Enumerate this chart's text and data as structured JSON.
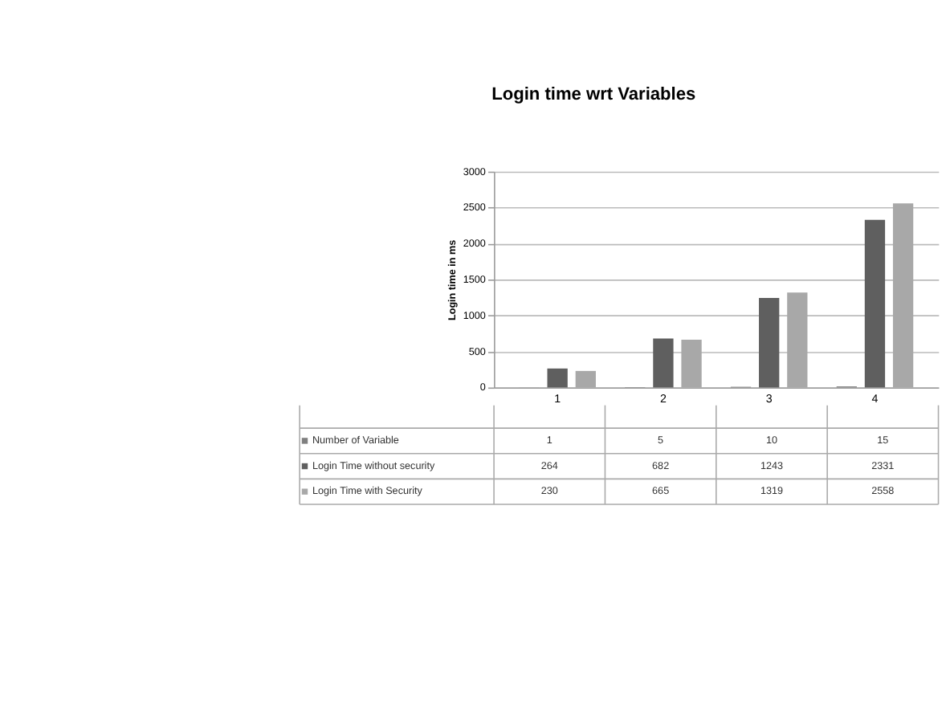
{
  "chart_data": {
    "type": "bar",
    "title": "Login time wrt Variables",
    "ylabel": "Login time in ms",
    "categories": [
      "1",
      "2",
      "3",
      "4"
    ],
    "series": [
      {
        "name": "Number of Variable",
        "color": "#7f7f7f",
        "values": [
          1,
          5,
          10,
          15
        ]
      },
      {
        "name": "Login Time without security",
        "color": "#5f5f5f",
        "values": [
          264,
          682,
          1243,
          2331
        ]
      },
      {
        "name": "Login Time with Security",
        "color": "#a8a8a8",
        "values": [
          230,
          665,
          1319,
          2558
        ]
      }
    ],
    "ylim": [
      0,
      3000
    ],
    "yticks": [
      0,
      500,
      1000,
      1500,
      2000,
      2500,
      3000
    ],
    "grid": "y",
    "data_labels": true,
    "legend": "bottom"
  }
}
